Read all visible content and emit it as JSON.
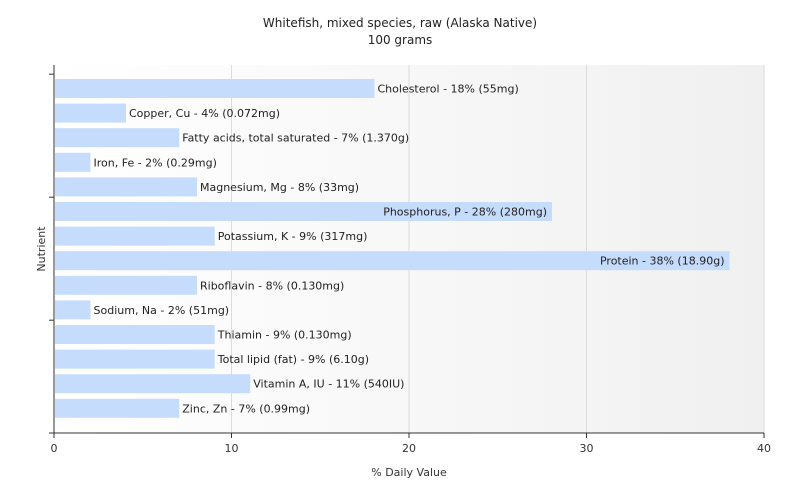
{
  "chart_data": {
    "type": "bar",
    "orientation": "horizontal",
    "title": "Whitefish, mixed species, raw (Alaska Native)",
    "subtitle": "100 grams",
    "xlabel": "% Daily Value",
    "ylabel": "Nutrient",
    "xlim": [
      0,
      40
    ],
    "xticks": [
      0,
      10,
      20,
      30,
      40
    ],
    "grid": true,
    "bar_color": "#c6dcfc",
    "categories": [
      "Cholesterol",
      "Copper, Cu",
      "Fatty acids, total saturated",
      "Iron, Fe",
      "Magnesium, Mg",
      "Phosphorus, P",
      "Potassium, K",
      "Protein",
      "Riboflavin",
      "Sodium, Na",
      "Thiamin",
      "Total lipid (fat)",
      "Vitamin A, IU",
      "Zinc, Zn"
    ],
    "values": [
      18,
      4,
      7,
      2,
      8,
      28,
      9,
      38,
      8,
      2,
      9,
      9,
      11,
      7
    ],
    "labels": [
      "Cholesterol - 18% (55mg)",
      "Copper, Cu - 4% (0.072mg)",
      "Fatty acids, total saturated - 7% (1.370g)",
      "Iron, Fe - 2% (0.29mg)",
      "Magnesium, Mg - 8% (33mg)",
      "Phosphorus, P - 28% (280mg)",
      "Potassium, K - 9% (317mg)",
      "Protein - 38% (18.90g)",
      "Riboflavin - 8% (0.130mg)",
      "Sodium, Na - 2% (51mg)",
      "Thiamin - 9% (0.130mg)",
      "Total lipid (fat) - 9% (6.10g)",
      "Vitamin A, IU - 11% (540IU)",
      "Zinc, Zn - 7% (0.99mg)"
    ]
  }
}
